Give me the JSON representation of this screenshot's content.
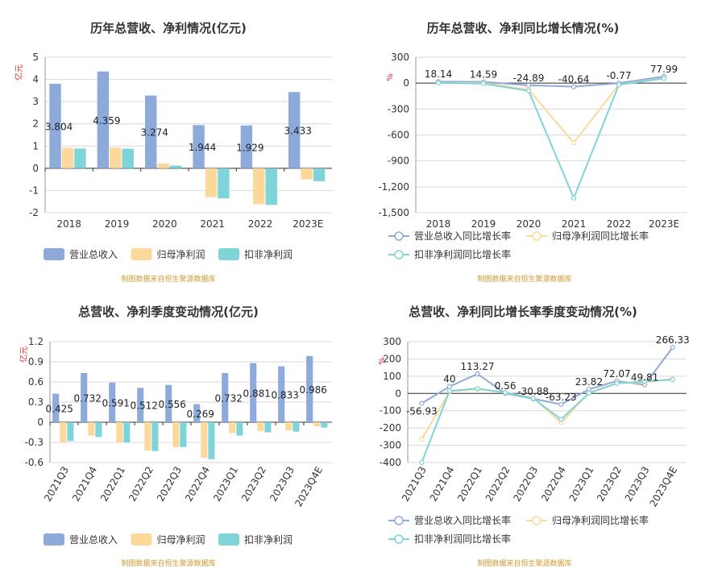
{
  "source_note": "制图数据来自恒生聚源数据库",
  "colors": {
    "revenue": "#8eaadb",
    "net": "#fdd89b",
    "deduct": "#7fd4d8",
    "unit": "#e0312c",
    "source": "#d19a33",
    "axis": "#333333",
    "grid": "#d9d9d9"
  },
  "chart_data": [
    {
      "type": "bar",
      "title": "历年总营收、净利情况(亿元)",
      "ylabel": "亿元",
      "ylim": [
        -2,
        5
      ],
      "yticks": [
        "5",
        "4",
        "3",
        "2",
        "1",
        "0",
        "-1",
        "-2"
      ],
      "categories": [
        "2018",
        "2019",
        "2020",
        "2021",
        "2022",
        "2023E"
      ],
      "series": [
        {
          "name": "营业总收入",
          "color": "#8eaadb",
          "values": [
            3.804,
            4.359,
            3.274,
            1.944,
            1.929,
            3.433
          ],
          "labels": [
            "3.804",
            "4.359",
            "3.274",
            "1.944",
            "1.929",
            "3.433"
          ]
        },
        {
          "name": "归母净利润",
          "color": "#fdd89b",
          "values": [
            0.92,
            0.93,
            0.22,
            -1.3,
            -1.62,
            -0.5
          ]
        },
        {
          "name": "扣非净利润",
          "color": "#7fd4d8",
          "values": [
            0.89,
            0.88,
            0.12,
            -1.35,
            -1.65,
            -0.58
          ]
        }
      ],
      "legend": "bottom"
    },
    {
      "type": "line",
      "title": "历年总营收、净利同比增长情况(%)",
      "ylabel": "%",
      "ylim": [
        -1500,
        300
      ],
      "yticks": [
        "300",
        "0",
        "-300",
        "-600",
        "-900",
        "-1,200",
        "-1,500"
      ],
      "categories": [
        "2018",
        "2019",
        "2020",
        "2021",
        "2022",
        "2023E"
      ],
      "series": [
        {
          "name": "营业总收入同比增长率",
          "color": "#8eaadb",
          "values": [
            18.14,
            14.59,
            -24.89,
            -40.64,
            -0.77,
            77.99
          ],
          "labels": [
            "18.14",
            "14.59",
            "-24.89",
            "-40.64",
            "-0.77",
            "77.99"
          ]
        },
        {
          "name": "归母净利润同比增长率",
          "color": "#fdd89b",
          "values": [
            5,
            2,
            -75,
            -690,
            -18,
            60
          ]
        },
        {
          "name": "扣非净利润同比增长率",
          "color": "#7fd4d8",
          "values": [
            3,
            -5,
            -90,
            -1330,
            -20,
            55
          ]
        }
      ],
      "legend": "bottom"
    },
    {
      "type": "bar",
      "title": "总营收、净利季度变动情况(亿元)",
      "ylabel": "亿元",
      "ylim": [
        -0.6,
        1.2
      ],
      "yticks": [
        "1.2",
        "0.9",
        "0.6",
        "0.3",
        "0",
        "-0.3",
        "-0.6"
      ],
      "categories": [
        "2021Q3",
        "2021Q4",
        "2022Q1",
        "2022Q2",
        "2022Q3",
        "2022Q4",
        "2023Q1",
        "2023Q2",
        "2023Q3",
        "2023Q4E"
      ],
      "series": [
        {
          "name": "营业总收入",
          "color": "#8eaadb",
          "values": [
            0.425,
            0.732,
            0.591,
            0.512,
            0.556,
            0.269,
            0.732,
            0.881,
            0.833,
            0.986
          ],
          "labels": [
            "0.425",
            "0.732",
            "0.591",
            "0.512",
            "0.556",
            "0.269",
            "0.732",
            "0.881",
            "0.833",
            "0.986"
          ]
        },
        {
          "name": "归母净利润",
          "color": "#fdd89b",
          "values": [
            -0.3,
            -0.2,
            -0.3,
            -0.42,
            -0.37,
            -0.53,
            -0.16,
            -0.13,
            -0.12,
            -0.06
          ]
        },
        {
          "name": "扣非净利润",
          "color": "#7fd4d8",
          "values": [
            -0.28,
            -0.22,
            -0.3,
            -0.43,
            -0.37,
            -0.55,
            -0.2,
            -0.15,
            -0.14,
            -0.08
          ]
        }
      ],
      "legend": "bottom"
    },
    {
      "type": "line",
      "title": "总营收、净利同比增长率季度变动情况(%)",
      "ylabel": "%",
      "ylim": [
        -400,
        300
      ],
      "yticks": [
        "300",
        "200",
        "100",
        "0",
        "-100",
        "-200",
        "-300",
        "-400"
      ],
      "categories": [
        "2021Q3",
        "2021Q4",
        "2022Q1",
        "2022Q2",
        "2022Q3",
        "2022Q4",
        "2023Q1",
        "2023Q2",
        "2023Q3",
        "2023Q4E"
      ],
      "series": [
        {
          "name": "营业总收入同比增长率",
          "color": "#8eaadb",
          "values": [
            -56.93,
            40,
            113.27,
            0.56,
            -30.88,
            -63.23,
            23.82,
            72.07,
            49.81,
            266.33
          ],
          "labels": [
            "-56.93",
            "40",
            "113.27",
            "0.56",
            "-30.88",
            "-63.23",
            "23.82",
            "72.07",
            "49.81",
            "266.33"
          ]
        },
        {
          "name": "归母净利润同比增长率",
          "color": "#fdd89b",
          "values": [
            -265,
            10,
            25,
            5,
            -25,
            -170,
            5,
            60,
            65,
            85
          ]
        },
        {
          "name": "扣非净利润同比增长率",
          "color": "#7fd4d8",
          "values": [
            -400,
            15,
            28,
            5,
            -28,
            -150,
            2,
            58,
            70,
            80
          ]
        }
      ],
      "legend": "bottom"
    }
  ]
}
